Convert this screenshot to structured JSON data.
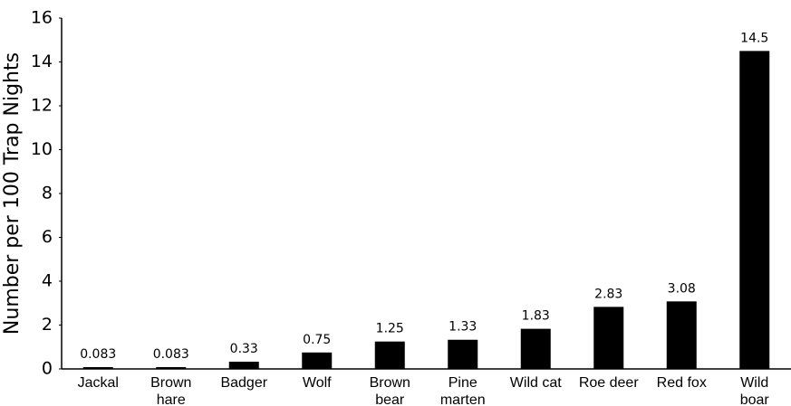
{
  "chart_data": {
    "type": "bar",
    "y_label": "Number per 100 Trap Nights",
    "categories": [
      "Jackal",
      "Brown hare",
      "Badger",
      "Wolf",
      "Brown bear",
      "Pine marten",
      "Wild cat",
      "Roe deer",
      "Red fox",
      "Wild boar"
    ],
    "values": [
      0.083,
      0.083,
      0.33,
      0.75,
      1.25,
      1.33,
      1.83,
      2.83,
      3.08,
      14.5
    ],
    "color": "#000000",
    "ylim": [
      0,
      16
    ],
    "yticks": [
      0,
      2,
      4,
      6,
      8,
      10,
      12,
      14,
      16
    ],
    "grid": false
  }
}
